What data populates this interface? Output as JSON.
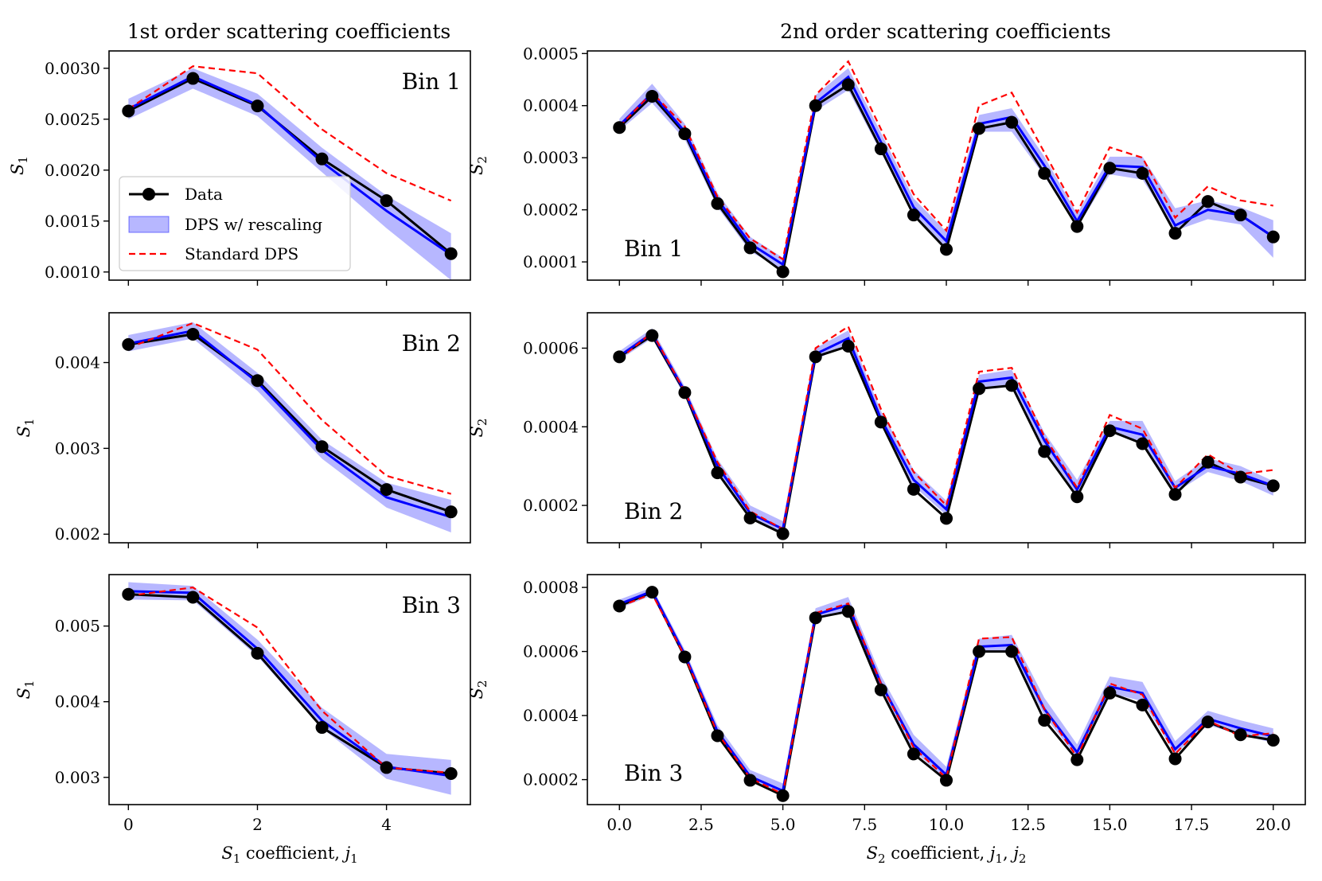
{
  "figure": {
    "col_titles": [
      "1st order scattering coefficients",
      "2nd order scattering coefficients"
    ]
  },
  "legend": {
    "data": "Data",
    "rescaled": "DPS w/ rescaling",
    "standard": "Standard DPS"
  },
  "colors": {
    "data": "#000000",
    "rescaled_line": "#0000ff",
    "rescaled_band": "#7b7bff",
    "standard": "#ff0000"
  },
  "chart_data": [
    {
      "type": "line",
      "id": "s1-bin1",
      "bin_label": "Bin 1",
      "ylabel": "S",
      "ylabel_sub": "1",
      "xlabel": "",
      "x": [
        0,
        1,
        2,
        3,
        4,
        5
      ],
      "xlim": [
        -0.3,
        5.3
      ],
      "ylim": [
        0.00092,
        0.00317
      ],
      "xticks": [
        0,
        2,
        4
      ],
      "xticklabels": [
        "",
        "",
        ""
      ],
      "yticks": [
        0.001,
        0.0015,
        0.002,
        0.0025,
        0.003
      ],
      "yticklabels": [
        "0.0010",
        "0.0015",
        "0.0020",
        "0.0025",
        "0.0030"
      ],
      "series": [
        {
          "name": "Data",
          "values": [
            0.00258,
            0.0029,
            0.00263,
            0.00211,
            0.0017,
            0.00118
          ]
        },
        {
          "name": "DPS w/ rescaling",
          "values": [
            0.0026,
            0.00292,
            0.00264,
            0.00208,
            0.0016,
            0.00117
          ],
          "band_low": [
            0.0025,
            0.0028,
            0.00253,
            0.00198,
            0.00143,
            0.00092
          ],
          "band_high": [
            0.0027,
            0.003,
            0.00275,
            0.00222,
            0.00175,
            0.00138
          ]
        },
        {
          "name": "Standard DPS",
          "values": [
            0.0026,
            0.00302,
            0.00295,
            0.0024,
            0.00197,
            0.0017
          ]
        }
      ],
      "legend_position": "center-left"
    },
    {
      "type": "line",
      "id": "s1-bin2",
      "bin_label": "Bin 2",
      "ylabel": "S",
      "ylabel_sub": "1",
      "xlabel": "",
      "x": [
        0,
        1,
        2,
        3,
        4,
        5
      ],
      "xlim": [
        -0.3,
        5.3
      ],
      "ylim": [
        0.0019,
        0.00458
      ],
      "xticks": [
        0,
        2,
        4
      ],
      "xticklabels": [
        "",
        "",
        ""
      ],
      "yticks": [
        0.002,
        0.003,
        0.004
      ],
      "yticklabels": [
        "0.002",
        "0.003",
        "0.004"
      ],
      "series": [
        {
          "name": "Data",
          "values": [
            0.00421,
            0.00433,
            0.00379,
            0.00302,
            0.00252,
            0.00226
          ]
        },
        {
          "name": "DPS w/ rescaling",
          "values": [
            0.00422,
            0.00437,
            0.00377,
            0.00298,
            0.00243,
            0.0022
          ]
        },
        {
          "name": "Standard DPS",
          "values": [
            0.00417,
            0.00446,
            0.00415,
            0.00333,
            0.00268,
            0.00247
          ]
        }
      ],
      "bands": {
        "low": [
          0.00413,
          0.00428,
          0.00367,
          0.00288,
          0.00231,
          0.00202
        ],
        "high": [
          0.00432,
          0.00447,
          0.00388,
          0.0031,
          0.0026,
          0.0024
        ]
      }
    },
    {
      "type": "line",
      "id": "s1-bin3",
      "bin_label": "Bin 3",
      "ylabel": "S",
      "ylabel_sub": "1",
      "xlabel": "S",
      "xlabel_sub": "1",
      "xlabel_rest": " coefficient, ",
      "xlabel_var": "j",
      "xlabel_var_sub": "1",
      "x": [
        0,
        1,
        2,
        3,
        4,
        5
      ],
      "xlim": [
        -0.3,
        5.3
      ],
      "ylim": [
        0.00264,
        0.00568
      ],
      "xticks": [
        0,
        2,
        4
      ],
      "xticklabels": [
        "0",
        "2",
        "4"
      ],
      "yticks": [
        0.003,
        0.004,
        0.005
      ],
      "yticklabels": [
        "0.003",
        "0.004",
        "0.005"
      ],
      "series": [
        {
          "name": "Data",
          "values": [
            0.00542,
            0.00538,
            0.00464,
            0.00366,
            0.00313,
            0.00305
          ]
        },
        {
          "name": "DPS w/ rescaling",
          "values": [
            0.00546,
            0.00544,
            0.0047,
            0.00375,
            0.00314,
            0.00302
          ]
        },
        {
          "name": "Standard DPS",
          "values": [
            0.0054,
            0.00551,
            0.00498,
            0.00388,
            0.00313,
            0.00306
          ]
        }
      ],
      "bands": {
        "low": [
          0.00535,
          0.00534,
          0.0046,
          0.00365,
          0.00298,
          0.00277
        ],
        "high": [
          0.00558,
          0.00553,
          0.00482,
          0.00392,
          0.00331,
          0.00323
        ]
      }
    },
    {
      "type": "line",
      "id": "s2-bin1",
      "bin_label": "Bin 1",
      "ylabel": "S",
      "ylabel_sub": "2",
      "xlabel": "",
      "x": [
        0,
        1,
        2,
        3,
        4,
        5,
        6,
        7,
        8,
        9,
        10,
        11,
        12,
        13,
        14,
        15,
        16,
        17,
        18,
        19,
        20
      ],
      "xlim": [
        -0.98,
        20.98
      ],
      "ylim": [
        6.5e-05,
        0.000505
      ],
      "xticks": [
        0,
        2.5,
        5,
        7.5,
        10,
        12.5,
        15,
        17.5,
        20
      ],
      "xticklabels": [
        "",
        "",
        "",
        "",
        "",
        "",
        "",
        "",
        ""
      ],
      "yticks": [
        0.0001,
        0.0002,
        0.0003,
        0.0004,
        0.0005
      ],
      "yticklabels": [
        "0.0001",
        "0.0002",
        "0.0003",
        "0.0004",
        "0.0005"
      ],
      "series": [
        {
          "name": "Data",
          "values": [
            0.000358,
            0.000418,
            0.000346,
            0.000212,
            0.000127,
            8.1e-05,
            0.0004,
            0.00044,
            0.000317,
            0.00019,
            0.000124,
            0.000356,
            0.000368,
            0.00027,
            0.000168,
            0.00028,
            0.00027,
            0.000155,
            0.000216,
            0.00019,
            0.000148
          ]
        },
        {
          "name": "DPS w/ rescaling",
          "values": [
            0.000362,
            0.000424,
            0.00035,
            0.00022,
            0.000135,
            9.5e-05,
            0.000405,
            0.000455,
            0.00033,
            0.000205,
            0.00014,
            0.000365,
            0.000378,
            0.000285,
            0.000178,
            0.000285,
            0.000282,
            0.00017,
            0.0002,
            0.00019,
            0.000148
          ]
        },
        {
          "name": "Standard DPS",
          "values": [
            0.00036,
            0.000425,
            0.00036,
            0.000225,
            0.000145,
            0.000105,
            0.00042,
            0.000485,
            0.000355,
            0.00023,
            0.00016,
            0.0004,
            0.000425,
            0.00031,
            0.000195,
            0.00032,
            0.0003,
            0.000185,
            0.000245,
            0.000218,
            0.000208
          ]
        }
      ],
      "bands": {
        "low": [
          0.000352,
          0.000405,
          0.000335,
          0.000205,
          0.00012,
          8.5e-05,
          0.00039,
          0.00043,
          0.00031,
          0.00019,
          0.000125,
          0.00035,
          0.00035,
          0.000265,
          0.000165,
          0.000268,
          0.000258,
          0.00016,
          0.000182,
          0.000172,
          0.000108
        ]
      },
      "bands_high": [
        0.000375,
        0.000442,
        0.000365,
        0.000232,
        0.000148,
        0.000108,
        0.00042,
        0.000472,
        0.000348,
        0.000222,
        0.000158,
        0.000382,
        0.000395,
        0.000302,
        0.000192,
        0.000302,
        0.000302,
        0.000203,
        0.000218,
        0.000205,
        0.00018
      ]
    },
    {
      "type": "line",
      "id": "s2-bin2",
      "bin_label": "Bin 2",
      "ylabel": "S",
      "ylabel_sub": "2",
      "xlabel": "",
      "x": [
        0,
        1,
        2,
        3,
        4,
        5,
        6,
        7,
        8,
        9,
        10,
        11,
        12,
        13,
        14,
        15,
        16,
        17,
        18,
        19,
        20
      ],
      "xlim": [
        -0.98,
        20.98
      ],
      "ylim": [
        0.000105,
        0.00069
      ],
      "xticks": [
        0,
        2.5,
        5,
        7.5,
        10,
        12.5,
        15,
        17.5,
        20
      ],
      "xticklabels": [
        "",
        "",
        "",
        "",
        "",
        "",
        "",
        "",
        ""
      ],
      "yticks": [
        0.0002,
        0.0004,
        0.0006
      ],
      "yticklabels": [
        "0.0002",
        "0.0004",
        "0.0006"
      ],
      "series": [
        {
          "name": "Data",
          "values": [
            0.000578,
            0.000632,
            0.000487,
            0.000283,
            0.000168,
            0.000128,
            0.000578,
            0.000605,
            0.000412,
            0.000241,
            0.000167,
            0.000497,
            0.000505,
            0.000337,
            0.000222,
            0.00039,
            0.000357,
            0.000228,
            0.00031,
            0.000272,
            0.00025
          ]
        },
        {
          "name": "DPS w/ rescaling",
          "values": [
            0.00058,
            0.000638,
            0.00049,
            0.0003,
            0.00018,
            0.00014,
            0.000585,
            0.000625,
            0.00042,
            0.000265,
            0.00019,
            0.000515,
            0.000525,
            0.000365,
            0.00024,
            0.0004,
            0.00038,
            0.000245,
            0.0003,
            0.00028,
            0.00025
          ]
        },
        {
          "name": "Standard DPS",
          "values": [
            0.000572,
            0.00064,
            0.00049,
            0.00031,
            0.000185,
            0.00014,
            0.0006,
            0.000655,
            0.000445,
            0.000285,
            0.0002,
            0.00054,
            0.00055,
            0.000375,
            0.000245,
            0.00043,
            0.000395,
            0.000245,
            0.00033,
            0.00028,
            0.00029
          ]
        }
      ],
      "bands": {
        "low": [
          0.00057,
          0.000625,
          0.000478,
          0.000285,
          0.000168,
          0.000128,
          0.00057,
          0.000612,
          0.000405,
          0.00025,
          0.000175,
          0.000495,
          0.000505,
          0.000345,
          0.000225,
          0.000385,
          0.000362,
          0.000232,
          0.000285,
          0.000262,
          0.000225
        ]
      },
      "bands_high": [
        0.000592,
        0.00065,
        0.000502,
        0.000318,
        0.0002,
        0.00016,
        0.0006,
        0.000645,
        0.00044,
        0.00029,
        0.000212,
        0.000532,
        0.000545,
        0.000385,
        0.000265,
        0.000415,
        0.000415,
        0.000262,
        0.00032,
        0.0003,
        0.000262
      ]
    },
    {
      "type": "line",
      "id": "s2-bin3",
      "bin_label": "Bin 3",
      "ylabel": "S",
      "ylabel_sub": "2",
      "xlabel": "S",
      "xlabel_sub": "2",
      "xlabel_rest": " coefficient, ",
      "xlabel_var": "j",
      "xlabel_var_sub": "1",
      "xlabel_var2": "j",
      "xlabel_var2_sub": "2",
      "x": [
        0,
        1,
        2,
        3,
        4,
        5,
        6,
        7,
        8,
        9,
        10,
        11,
        12,
        13,
        14,
        15,
        16,
        17,
        18,
        19,
        20
      ],
      "xlim": [
        -0.98,
        20.98
      ],
      "ylim": [
        0.000122,
        0.00084
      ],
      "xticks": [
        0,
        2.5,
        5,
        7.5,
        10,
        12.5,
        15,
        17.5,
        20
      ],
      "xticklabels": [
        "0.0",
        "2.5",
        "5.0",
        "7.5",
        "10.0",
        "12.5",
        "15.0",
        "17.5",
        "20.0"
      ],
      "yticks": [
        0.0002,
        0.0004,
        0.0006,
        0.0008
      ],
      "yticklabels": [
        "0.0002",
        "0.0004",
        "0.0006",
        "0.0008"
      ],
      "series": [
        {
          "name": "Data",
          "values": [
            0.000742,
            0.000785,
            0.000583,
            0.000337,
            0.000198,
            0.00015,
            0.000705,
            0.000725,
            0.00048,
            0.00028,
            0.000198,
            0.0006,
            0.0006,
            0.000385,
            0.000262,
            0.00047,
            0.000433,
            0.000265,
            0.00038,
            0.00034,
            0.000323
          ]
        },
        {
          "name": "DPS w/ rescaling",
          "values": [
            0.000748,
            0.000788,
            0.00059,
            0.00035,
            0.00021,
            0.000165,
            0.000715,
            0.000745,
            0.0005,
            0.00031,
            0.000215,
            0.000615,
            0.00062,
            0.00042,
            0.000285,
            0.00049,
            0.00047,
            0.000295,
            0.00039,
            0.00036,
            0.000335
          ]
        },
        {
          "name": "Standard DPS",
          "values": [
            0.00074,
            0.00078,
            0.000585,
            0.000345,
            0.000205,
            0.000155,
            0.00072,
            0.00075,
            0.0005,
            0.0003,
            0.000205,
            0.00064,
            0.000645,
            0.00042,
            0.00027,
            0.0005,
            0.000465,
            0.00028,
            0.000385,
            0.000335,
            0.000345
          ]
        }
      ],
      "bands": {
        "low": [
          0.000735,
          0.000775,
          0.000575,
          0.000335,
          0.000195,
          0.00015,
          0.0007,
          0.000725,
          0.00048,
          0.00029,
          0.0002,
          0.000598,
          0.0006,
          0.0004,
          0.000268,
          0.00047,
          0.000445,
          0.00028,
          0.00037,
          0.00034,
          0.000315
        ]
      },
      "bands_high": [
        0.000762,
        0.0008,
        0.000605,
        0.00037,
        0.00023,
        0.000188,
        0.000735,
        0.00077,
        0.000525,
        0.00034,
        0.00024,
        0.00064,
        0.000652,
        0.000455,
        0.00031,
        0.000522,
        0.000505,
        0.00032,
        0.000415,
        0.000385,
        0.00036
      ]
    }
  ]
}
